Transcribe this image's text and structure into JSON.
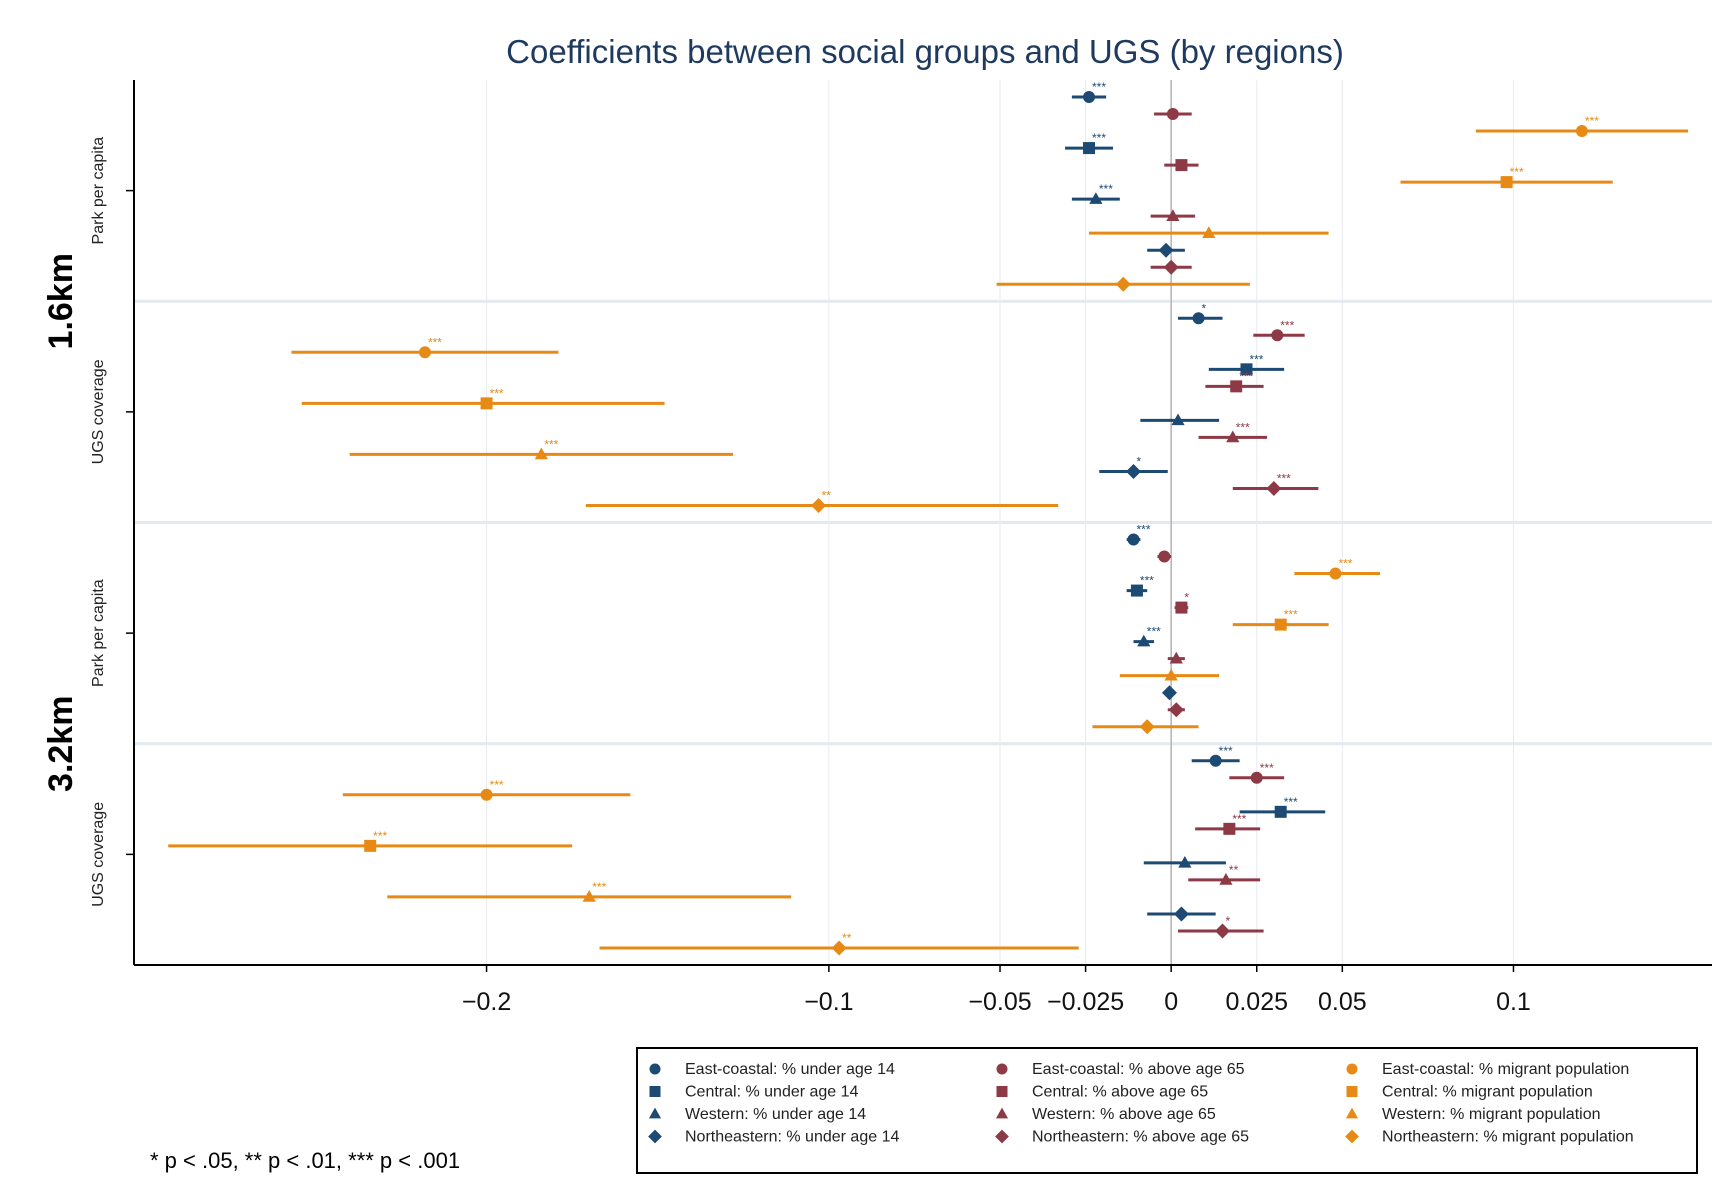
{
  "colors": {
    "under_age_14": "#1c4a72",
    "above_age_65": "#8e3a46",
    "migrant_population": "#e68a15"
  },
  "chart_data": {
    "type": "forest",
    "title": "Coefficients between social groups and UGS (by regions)",
    "x_ticks": [
      -0.2,
      -0.1,
      -0.05,
      -0.025,
      0,
      0.025,
      0.05,
      0.1
    ],
    "x_tick_labels": [
      "−0.2",
      "−0.1",
      "−0.05",
      "−0.025",
      "0",
      "0.025",
      "0.05",
      "0.1"
    ],
    "xlim": [
      -0.303,
      0.158
    ],
    "reference_line": 0,
    "panels": [
      {
        "label": "1.6km",
        "groups": [
          {
            "label": "Park per capita",
            "points": [
              {
                "region": "East-coastal",
                "group": "under_age_14",
                "est": -0.024,
                "lo": -0.029,
                "hi": -0.019,
                "sig": "***"
              },
              {
                "region": "East-coastal",
                "group": "above_age_65",
                "est": 0.0005,
                "lo": -0.005,
                "hi": 0.006,
                "sig": ""
              },
              {
                "region": "East-coastal",
                "group": "migrant_population",
                "est": 0.12,
                "lo": 0.089,
                "hi": 0.151,
                "sig": "***"
              },
              {
                "region": "Central",
                "group": "under_age_14",
                "est": -0.024,
                "lo": -0.031,
                "hi": -0.017,
                "sig": "***"
              },
              {
                "region": "Central",
                "group": "above_age_65",
                "est": 0.003,
                "lo": -0.002,
                "hi": 0.008,
                "sig": ""
              },
              {
                "region": "Central",
                "group": "migrant_population",
                "est": 0.098,
                "lo": 0.067,
                "hi": 0.129,
                "sig": "***"
              },
              {
                "region": "Western",
                "group": "under_age_14",
                "est": -0.022,
                "lo": -0.029,
                "hi": -0.015,
                "sig": "***"
              },
              {
                "region": "Western",
                "group": "above_age_65",
                "est": 0.0005,
                "lo": -0.006,
                "hi": 0.007,
                "sig": ""
              },
              {
                "region": "Western",
                "group": "migrant_population",
                "est": 0.011,
                "lo": -0.024,
                "hi": 0.046,
                "sig": ""
              },
              {
                "region": "Northeastern",
                "group": "under_age_14",
                "est": -0.0015,
                "lo": -0.007,
                "hi": 0.004,
                "sig": ""
              },
              {
                "region": "Northeastern",
                "group": "above_age_65",
                "est": 0.0,
                "lo": -0.006,
                "hi": 0.006,
                "sig": ""
              },
              {
                "region": "Northeastern",
                "group": "migrant_population",
                "est": -0.014,
                "lo": -0.051,
                "hi": 0.023,
                "sig": ""
              }
            ]
          },
          {
            "label": "UGS coverage",
            "points": [
              {
                "region": "East-coastal",
                "group": "under_age_14",
                "est": 0.008,
                "lo": 0.002,
                "hi": 0.015,
                "sig": "*"
              },
              {
                "region": "East-coastal",
                "group": "above_age_65",
                "est": 0.031,
                "lo": 0.024,
                "hi": 0.039,
                "sig": "***"
              },
              {
                "region": "East-coastal",
                "group": "migrant_population",
                "est": -0.218,
                "lo": -0.257,
                "hi": -0.179,
                "sig": "***"
              },
              {
                "region": "Central",
                "group": "under_age_14",
                "est": 0.022,
                "lo": 0.011,
                "hi": 0.033,
                "sig": "***"
              },
              {
                "region": "Central",
                "group": "above_age_65",
                "est": 0.019,
                "lo": 0.01,
                "hi": 0.027,
                "sig": "***"
              },
              {
                "region": "Central",
                "group": "migrant_population",
                "est": -0.2,
                "lo": -0.254,
                "hi": -0.148,
                "sig": "***"
              },
              {
                "region": "Western",
                "group": "under_age_14",
                "est": 0.002,
                "lo": -0.009,
                "hi": 0.014,
                "sig": ""
              },
              {
                "region": "Western",
                "group": "above_age_65",
                "est": 0.018,
                "lo": 0.008,
                "hi": 0.028,
                "sig": "***"
              },
              {
                "region": "Western",
                "group": "migrant_population",
                "est": -0.184,
                "lo": -0.24,
                "hi": -0.128,
                "sig": "***"
              },
              {
                "region": "Northeastern",
                "group": "under_age_14",
                "est": -0.011,
                "lo": -0.021,
                "hi": -0.001,
                "sig": "*"
              },
              {
                "region": "Northeastern",
                "group": "above_age_65",
                "est": 0.03,
                "lo": 0.018,
                "hi": 0.043,
                "sig": "***"
              },
              {
                "region": "Northeastern",
                "group": "migrant_population",
                "est": -0.103,
                "lo": -0.171,
                "hi": -0.033,
                "sig": "**"
              }
            ]
          }
        ]
      },
      {
        "label": "3.2km",
        "groups": [
          {
            "label": "Park per capita",
            "points": [
              {
                "region": "East-coastal",
                "group": "under_age_14",
                "est": -0.011,
                "lo": -0.013,
                "hi": -0.009,
                "sig": "***"
              },
              {
                "region": "East-coastal",
                "group": "above_age_65",
                "est": -0.002,
                "lo": -0.004,
                "hi": 0.0,
                "sig": ""
              },
              {
                "region": "East-coastal",
                "group": "migrant_population",
                "est": 0.048,
                "lo": 0.036,
                "hi": 0.061,
                "sig": "***"
              },
              {
                "region": "Central",
                "group": "under_age_14",
                "est": -0.01,
                "lo": -0.013,
                "hi": -0.007,
                "sig": "***"
              },
              {
                "region": "Central",
                "group": "above_age_65",
                "est": 0.003,
                "lo": 0.001,
                "hi": 0.005,
                "sig": "*"
              },
              {
                "region": "Central",
                "group": "migrant_population",
                "est": 0.032,
                "lo": 0.018,
                "hi": 0.046,
                "sig": "***"
              },
              {
                "region": "Western",
                "group": "under_age_14",
                "est": -0.008,
                "lo": -0.011,
                "hi": -0.005,
                "sig": "***"
              },
              {
                "region": "Western",
                "group": "above_age_65",
                "est": 0.0015,
                "lo": -0.001,
                "hi": 0.004,
                "sig": ""
              },
              {
                "region": "Western",
                "group": "migrant_population",
                "est": 0.0,
                "lo": -0.015,
                "hi": 0.014,
                "sig": ""
              },
              {
                "region": "Northeastern",
                "group": "under_age_14",
                "est": -0.0005,
                "lo": -0.002,
                "hi": 0.001,
                "sig": ""
              },
              {
                "region": "Northeastern",
                "group": "above_age_65",
                "est": 0.0015,
                "lo": -0.001,
                "hi": 0.004,
                "sig": ""
              },
              {
                "region": "Northeastern",
                "group": "migrant_population",
                "est": -0.007,
                "lo": -0.023,
                "hi": 0.008,
                "sig": ""
              }
            ]
          },
          {
            "label": "UGS coverage",
            "points": [
              {
                "region": "East-coastal",
                "group": "under_age_14",
                "est": 0.013,
                "lo": 0.006,
                "hi": 0.02,
                "sig": "***"
              },
              {
                "region": "East-coastal",
                "group": "above_age_65",
                "est": 0.025,
                "lo": 0.017,
                "hi": 0.033,
                "sig": "***"
              },
              {
                "region": "East-coastal",
                "group": "migrant_population",
                "est": -0.2,
                "lo": -0.242,
                "hi": -0.158,
                "sig": "***"
              },
              {
                "region": "Central",
                "group": "under_age_14",
                "est": 0.032,
                "lo": 0.02,
                "hi": 0.045,
                "sig": "***"
              },
              {
                "region": "Central",
                "group": "above_age_65",
                "est": 0.017,
                "lo": 0.007,
                "hi": 0.026,
                "sig": "***"
              },
              {
                "region": "Central",
                "group": "migrant_population",
                "est": -0.234,
                "lo": -0.293,
                "hi": -0.175,
                "sig": "***"
              },
              {
                "region": "Western",
                "group": "under_age_14",
                "est": 0.004,
                "lo": -0.008,
                "hi": 0.016,
                "sig": ""
              },
              {
                "region": "Western",
                "group": "above_age_65",
                "est": 0.016,
                "lo": 0.005,
                "hi": 0.026,
                "sig": "**"
              },
              {
                "region": "Western",
                "group": "migrant_population",
                "est": -0.17,
                "lo": -0.229,
                "hi": -0.111,
                "sig": "***"
              },
              {
                "region": "Northeastern",
                "group": "under_age_14",
                "est": 0.003,
                "lo": -0.007,
                "hi": 0.013,
                "sig": ""
              },
              {
                "region": "Northeastern",
                "group": "above_age_65",
                "est": 0.015,
                "lo": 0.002,
                "hi": 0.027,
                "sig": "*"
              },
              {
                "region": "Northeastern",
                "group": "migrant_population",
                "est": -0.097,
                "lo": -0.167,
                "hi": -0.027,
                "sig": "**"
              }
            ]
          }
        ]
      }
    ],
    "legend": {
      "position": "bottom-right",
      "columns": [
        [
          "East-coastal: % under age 14",
          "Central: % under age 14",
          "Western: % under age 14",
          "Northeastern: % under age 14"
        ],
        [
          "East-coastal: % above age 65",
          "Central: % above age 65",
          "Western: % above age 65",
          "Northeastern: % above age 65"
        ],
        [
          "East-coastal: % migrant population",
          "Central: % migrant population",
          "Western: % migrant population",
          "Northeastern: % migrant population"
        ]
      ]
    },
    "note": "* p < .05, ** p < .01, *** p < .001"
  }
}
